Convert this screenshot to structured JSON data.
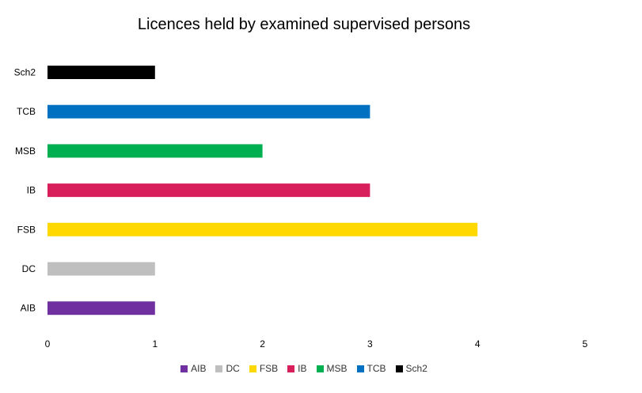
{
  "chart_data": {
    "type": "bar",
    "orientation": "horizontal",
    "title": "Licences held by examined supervised persons",
    "categories": [
      "AIB",
      "DC",
      "FSB",
      "IB",
      "MSB",
      "TCB",
      "Sch2"
    ],
    "values": [
      1,
      1,
      4,
      3,
      2,
      3,
      1
    ],
    "colors": [
      "#7030A0",
      "#BFBFBF",
      "#FFD800",
      "#D81F5C",
      "#00B050",
      "#0070C0",
      "#000000"
    ],
    "xlim": [
      0,
      5
    ],
    "xticks": [
      0,
      1,
      2,
      3,
      4,
      5
    ],
    "grid": false,
    "legend": "bottom"
  }
}
